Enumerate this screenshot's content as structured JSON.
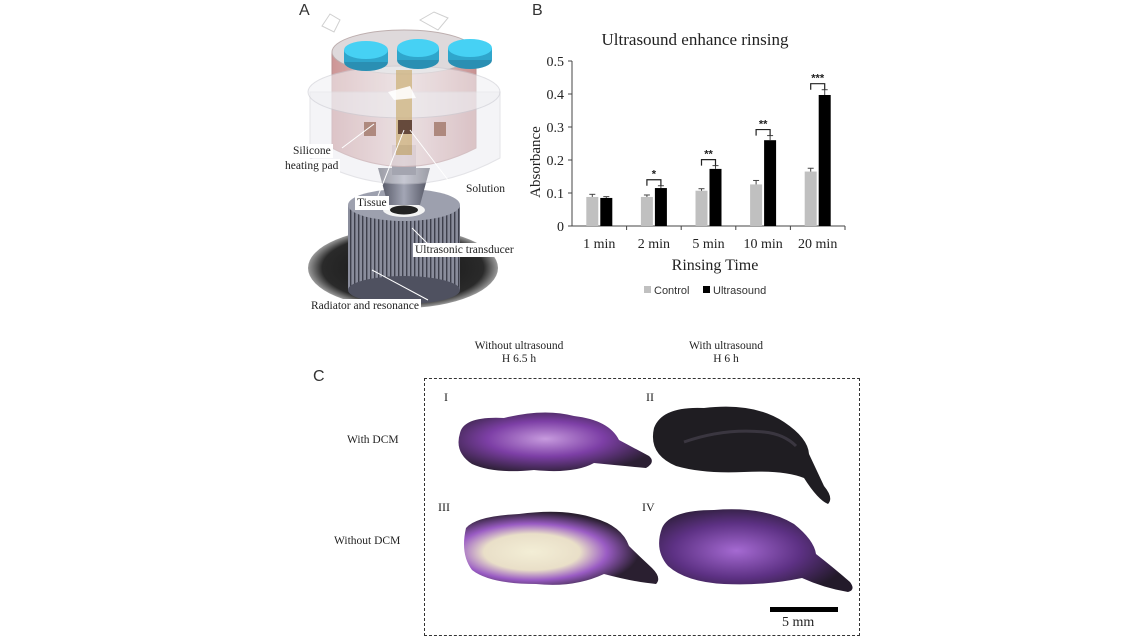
{
  "panels": {
    "a": "A",
    "b": "B",
    "c": "C"
  },
  "panel_a": {
    "callouts": {
      "silicone": [
        "Silicone",
        "heating pad"
      ],
      "solution": "Solution",
      "tissue": "Tissue",
      "transducer": "Ultrasonic transducer",
      "radiator": "Radiator and resonance"
    },
    "colors": {
      "cap": "#3fc8ee",
      "chamber": "#e6bcbc",
      "metal": "#7c7f90"
    }
  },
  "chart_data": {
    "type": "bar",
    "title": "Ultrasound enhance rinsing",
    "xlabel": "Rinsing Time",
    "ylabel": "Absorbance",
    "categories": [
      "1 min",
      "2 min",
      "5 min",
      "10 min",
      "20 min"
    ],
    "ylim": [
      0,
      0.5
    ],
    "yticks": [
      "0",
      "0.1",
      "0.2",
      "0.3",
      "0.4",
      "0.5"
    ],
    "series": [
      {
        "name": "Control",
        "color": "#c0c0c0",
        "values": [
          0.088,
          0.088,
          0.107,
          0.126,
          0.165
        ],
        "errors": [
          0.008,
          0.006,
          0.006,
          0.012,
          0.01
        ]
      },
      {
        "name": "Ultrasound",
        "color": "#000000",
        "values": [
          0.085,
          0.115,
          0.173,
          0.26,
          0.397
        ],
        "errors": [
          0.004,
          0.007,
          0.01,
          0.014,
          0.016
        ]
      }
    ],
    "significance": [
      "",
      "*",
      "**",
      "**",
      "***"
    ],
    "legend_position": "bottom",
    "grid": false
  },
  "panel_c": {
    "col_captions": [
      [
        "Without ultrasound",
        "H 6.5 h"
      ],
      [
        "With ultrasound",
        "H 6 h"
      ]
    ],
    "row_labels": [
      "With DCM",
      "Without DCM"
    ],
    "image_labels": [
      "I",
      "II",
      "III",
      "IV"
    ],
    "scale_bar": "5 mm",
    "colors": {
      "stain": "#8a4fb0",
      "dark": "#1e1a22",
      "light": "#efe9d0"
    }
  }
}
